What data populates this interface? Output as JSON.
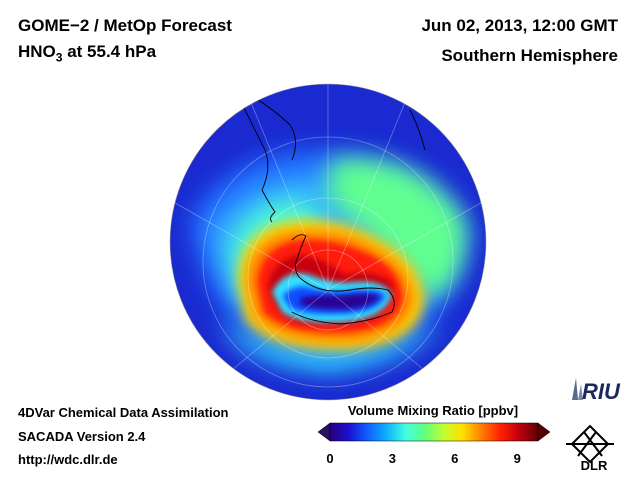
{
  "header": {
    "product": "GOME−2 / MetOp Forecast",
    "species": "HNO",
    "species_sub": "3",
    "level": " at 55.4 hPa",
    "datetime": "Jun 02, 2013, 12:00 GMT",
    "region": "Southern Hemisphere"
  },
  "footer": {
    "line1": "4DVar Chemical Data Assimilation",
    "line2": "SACADA Version 2.4",
    "line3": "http://wdc.dlr.de"
  },
  "colorbar": {
    "title": "Volume Mixing Ratio [ppbv]",
    "min": 0,
    "max": 10,
    "ticks": [
      "0",
      "3",
      "6",
      "9"
    ],
    "tick_values": [
      0,
      3,
      6,
      9
    ],
    "colors": [
      "#2a0080",
      "#1a10d0",
      "#1060ff",
      "#10b0ff",
      "#40ffe0",
      "#60ff80",
      "#c0ff30",
      "#ffe000",
      "#ff8000",
      "#ff2000",
      "#c00010",
      "#600000"
    ]
  },
  "logos": {
    "riu": "RIU",
    "dlr": "DLR"
  }
}
